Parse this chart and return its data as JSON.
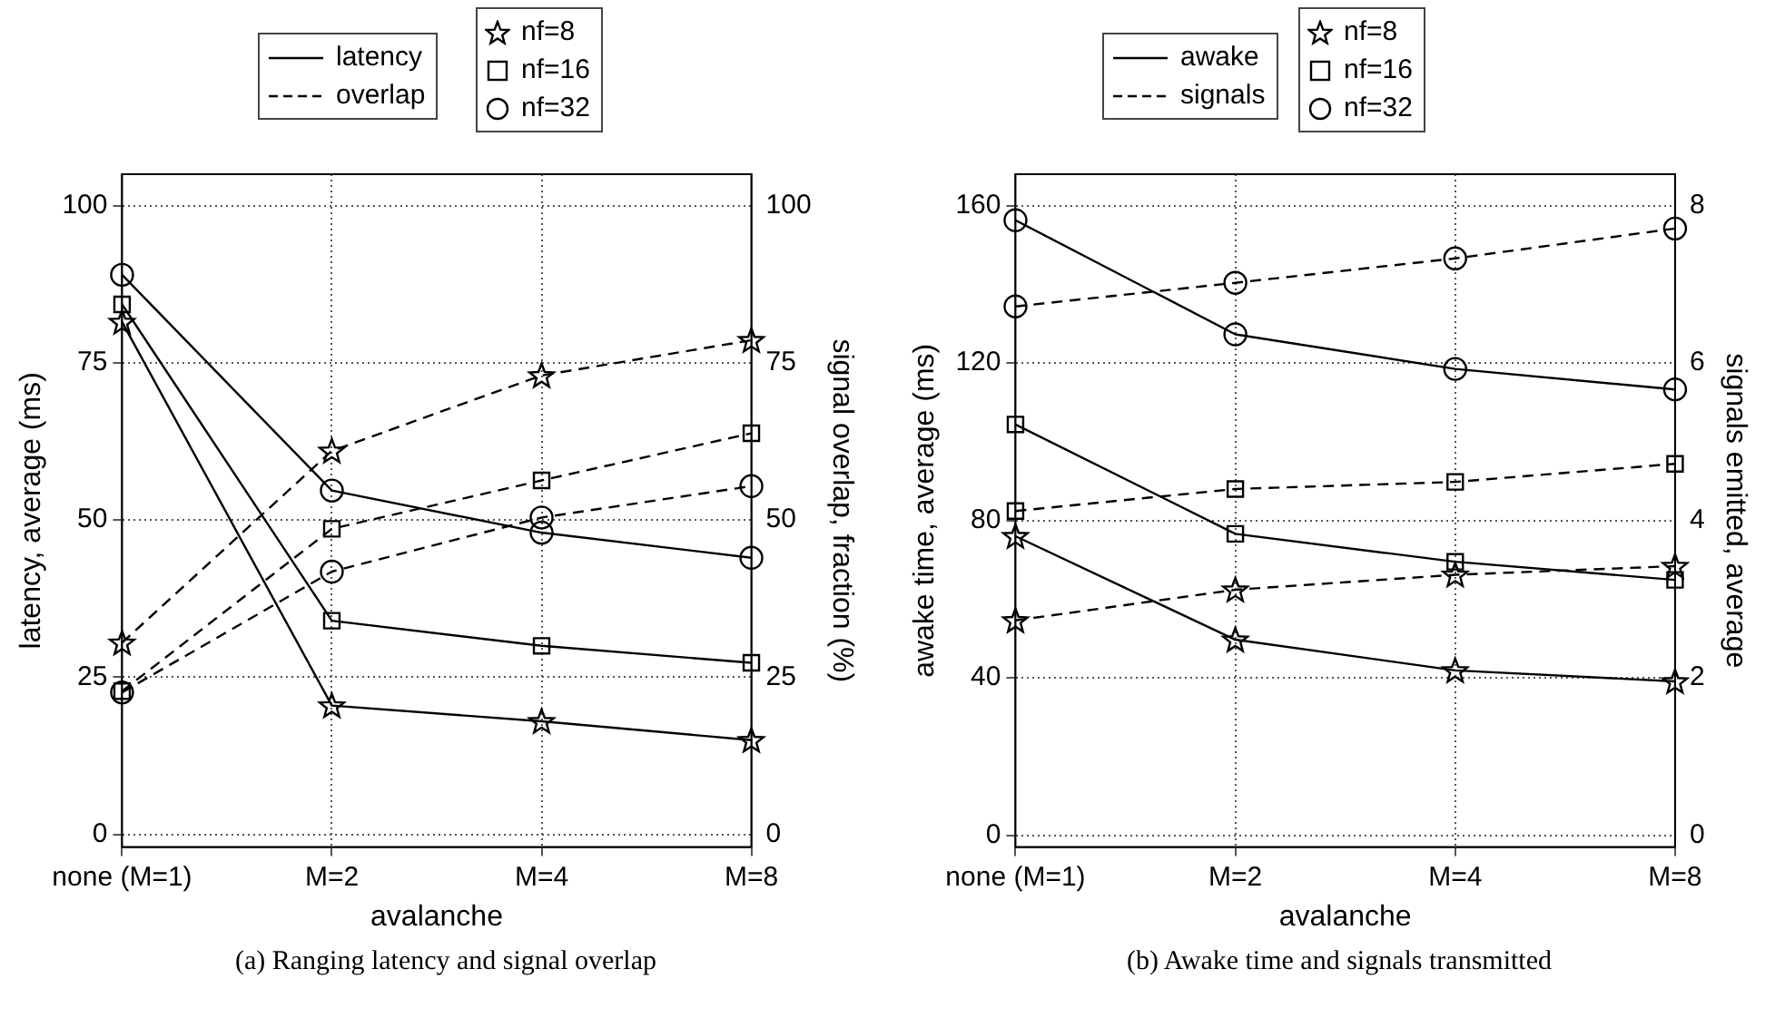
{
  "chart_data": [
    {
      "type": "line",
      "title": "(a) Ranging latency and signal overlap",
      "xlabel": "avalanche",
      "ylabel": "latency, average (ms)",
      "y2label": "signal overlap, fraction (%)",
      "categories": [
        "none (M=1)",
        "M=2",
        "M=4",
        "M=8"
      ],
      "series": [
        {
          "color": "#000000",
          "marker": "star",
          "line_style": "solid",
          "values": [
            81.5,
            20.5,
            18,
            15
          ]
        },
        {
          "color": "#000000",
          "marker": "square",
          "line_style": "solid",
          "values": [
            84.3,
            34,
            30,
            27.3
          ]
        },
        {
          "color": "#000000",
          "marker": "circle",
          "line_style": "solid",
          "values": [
            89,
            54.7,
            48,
            44
          ]
        },
        {
          "color": "#000000",
          "marker": "star",
          "line_style": "dashed",
          "axis": "y2",
          "values": [
            30.5,
            61,
            73,
            78.6
          ]
        },
        {
          "color": "#000000",
          "marker": "square",
          "line_style": "dashed",
          "axis": "y2",
          "values": [
            22.8,
            48.6,
            56.3,
            63.8
          ]
        },
        {
          "color": "#000000",
          "marker": "circle",
          "line_style": "dashed",
          "axis": "y2",
          "values": [
            22.6,
            41.8,
            50.4,
            55.4
          ]
        }
      ],
      "annotations": [
        "latency",
        "overlap",
        "nf=8",
        "nf=16",
        "nf=32"
      ],
      "ylim": [
        -2,
        105
      ],
      "yticks": [
        0,
        25,
        50,
        75,
        100
      ],
      "y2lim": [
        -2,
        105
      ],
      "y2ticks": [
        0,
        25,
        50,
        75,
        100
      ],
      "grid": true
    },
    {
      "type": "line",
      "title": "(b) Awake time and signals transmitted",
      "xlabel": "avalanche",
      "ylabel": "awake time, average (ms)",
      "y2label": "signals emitted, average",
      "categories": [
        "none (M=1)",
        "M=2",
        "M=4",
        "M=8"
      ],
      "series": [
        {
          "color": "#000000",
          "marker": "star",
          "line_style": "solid",
          "values": [
            76,
            49.7,
            41.9,
            39.1
          ]
        },
        {
          "color": "#000000",
          "marker": "square",
          "line_style": "solid",
          "values": [
            104.4,
            76.6,
            69.5,
            64.9
          ]
        },
        {
          "color": "#000000",
          "marker": "circle",
          "line_style": "solid",
          "values": [
            156.3,
            127.3,
            118.5,
            113.3
          ]
        },
        {
          "color": "#000000",
          "marker": "star",
          "line_style": "dashed",
          "axis": "y2",
          "values": [
            2.73,
            3.12,
            3.31,
            3.42
          ]
        },
        {
          "color": "#000000",
          "marker": "square",
          "line_style": "dashed",
          "axis": "y2",
          "values": [
            4.12,
            4.4,
            4.49,
            4.72
          ]
        },
        {
          "color": "#000000",
          "marker": "circle",
          "line_style": "dashed",
          "axis": "y2",
          "values": [
            6.72,
            7.02,
            7.33,
            7.71
          ]
        }
      ],
      "annotations": [
        "awake",
        "signals",
        "nf=8",
        "nf=16",
        "nf=32"
      ],
      "ylim": [
        -3,
        168
      ],
      "yticks": [
        0,
        40,
        80,
        120,
        160
      ],
      "y2lim": [
        -0.15,
        8.4
      ],
      "y2ticks": [
        0,
        2,
        4,
        6,
        8
      ],
      "grid": true
    }
  ]
}
